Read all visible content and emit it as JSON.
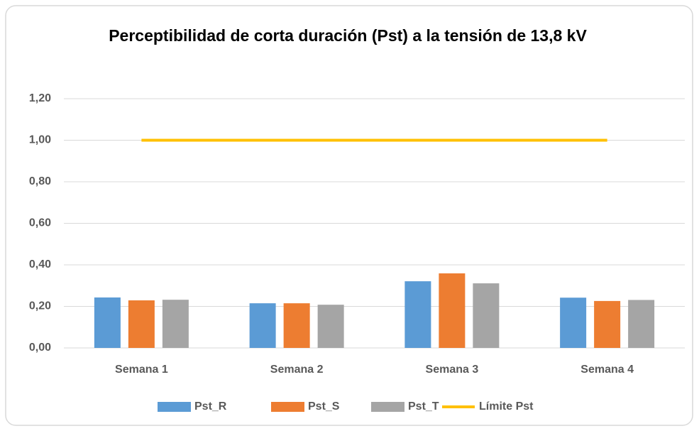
{
  "chart_data": {
    "type": "bar",
    "title": "Perceptibilidad de corta duración (Pst) a la tensión de 13,8 kV",
    "categories": [
      "Semana 1",
      "Semana 2",
      "Semana 3",
      "Semana 4"
    ],
    "series": [
      {
        "name": "Pst_R",
        "color": "#5b9bd5",
        "values": [
          0.243,
          0.215,
          0.321,
          0.242
        ]
      },
      {
        "name": "Pst_S",
        "color": "#ed7d31",
        "values": [
          0.229,
          0.215,
          0.359,
          0.226
        ]
      },
      {
        "name": "Pst_T",
        "color": "#a5a5a5",
        "values": [
          0.232,
          0.208,
          0.311,
          0.231
        ]
      },
      {
        "name": "Límite Pst",
        "type": "line",
        "color": "#ffc000",
        "values": [
          1.0,
          1.0,
          1.0,
          1.0
        ]
      }
    ],
    "ylim": [
      0,
      1.2
    ],
    "yticks": [
      {
        "value": 0,
        "label": "0,00"
      },
      {
        "value": 0.2,
        "label": "0,20"
      },
      {
        "value": 0.4,
        "label": "0,40"
      },
      {
        "value": 0.6,
        "label": "0,60"
      },
      {
        "value": 0.8,
        "label": "0,80"
      },
      {
        "value": 1.0,
        "label": "1,00"
      },
      {
        "value": 1.2,
        "label": "1,20"
      }
    ],
    "grid": true,
    "legend": "bottom"
  }
}
